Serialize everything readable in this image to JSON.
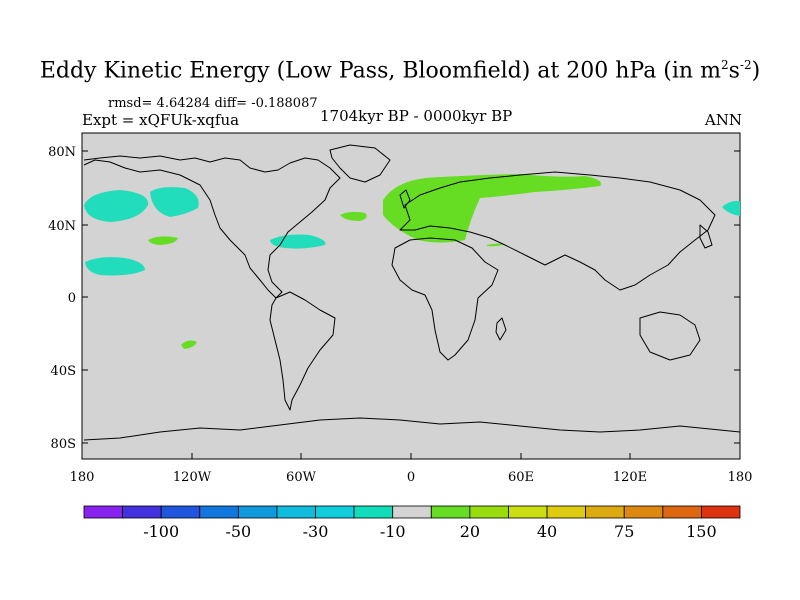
{
  "title_main": "Eddy Kinetic Energy (Low Pass, Bloomfield) at 200 hPa (in m",
  "title_sup1": "2",
  "title_mid": "s",
  "title_sup2": "-2",
  "title_end": ")",
  "stats": "rmsd= 4.64284 diff= -0.188087",
  "expt": "Expt = xQFUk-xqfua",
  "period": "1704kyr BP - 0000kyr BP",
  "season": "ANN",
  "lat_labels": [
    "80N",
    "40N",
    "0",
    "40S",
    "80S"
  ],
  "lon_labels": [
    "180",
    "120W",
    "60W",
    "0",
    "60E",
    "120E",
    "180"
  ],
  "colors": {
    "land_ocean": "#d3d3d3",
    "positive": "#66dd22",
    "negative": "#22ddbb"
  },
  "colorbar": {
    "colors": [
      "#8822ee",
      "#4433dd",
      "#2255dd",
      "#1177dd",
      "#1199dd",
      "#11bbdd",
      "#11ccdd",
      "#11ddbb",
      "#d3d3d3",
      "#66dd22",
      "#99dd11",
      "#ccdd11",
      "#ddcc11",
      "#ddaa11",
      "#dd8811",
      "#dd6611",
      "#dd3311"
    ],
    "labels": [
      "-100",
      "-50",
      "-30",
      "-10",
      "20",
      "40",
      "75",
      "150"
    ]
  }
}
